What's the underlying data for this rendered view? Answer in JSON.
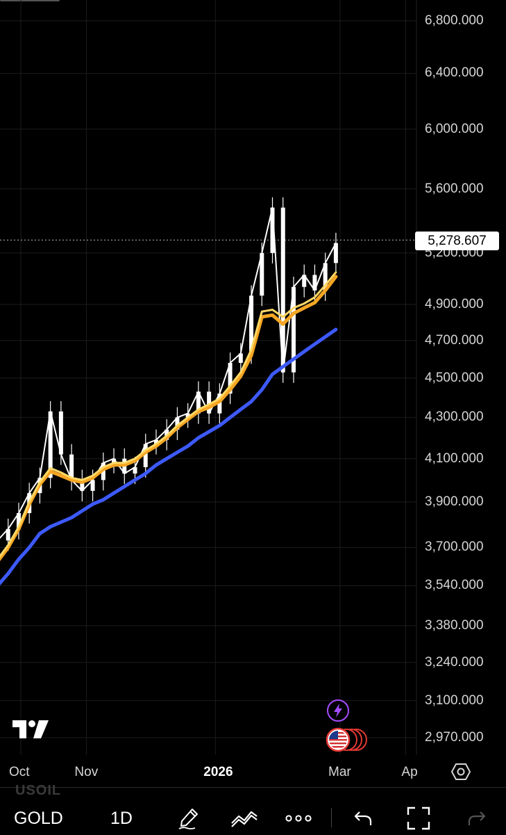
{
  "chart_data": {
    "type": "line",
    "title": "",
    "xlabel": "",
    "ylabel": "",
    "log_scale": true,
    "ylim": [
      2900,
      6950
    ],
    "grid": true,
    "y_ticks": [
      "6,800.000",
      "6,400.000",
      "6,000.000",
      "5,600.000",
      "5,200.000",
      "4,900.000",
      "4,700.000",
      "4,500.000",
      "4,300.000",
      "4,100.000",
      "3,900.000",
      "3,700.000",
      "3,540.000",
      "3,380.000",
      "3,240.000",
      "3,100.000",
      "2,970.000"
    ],
    "x_ticks": [
      "Oct",
      "Nov",
      "2026",
      "Mar",
      "Ap"
    ],
    "last_price": "5,278.607",
    "x_dates": [
      "2025-09-10",
      "2025-09-15",
      "2025-09-20",
      "2025-09-25",
      "2025-09-30",
      "2025-10-05",
      "2025-10-10",
      "2025-10-15",
      "2025-10-20",
      "2025-10-25",
      "2025-10-30",
      "2025-11-04",
      "2025-11-09",
      "2025-11-14",
      "2025-11-19",
      "2025-11-24",
      "2025-11-29",
      "2025-12-04",
      "2025-12-09",
      "2025-12-14",
      "2025-12-19",
      "2025-12-24",
      "2025-12-29",
      "2026-01-03",
      "2026-01-08",
      "2026-01-13",
      "2026-01-18",
      "2026-01-23",
      "2026-01-28",
      "2026-02-02",
      "2026-02-07",
      "2026-02-12",
      "2026-02-17",
      "2026-02-22",
      "2026-02-27"
    ],
    "series": [
      {
        "color": "#ffffff",
        "values": [
          3640,
          3700,
          3730,
          3780,
          3850,
          3940,
          4010,
          4330,
          4120,
          4000,
          3950,
          4000,
          4080,
          4100,
          4030,
          4060,
          4170,
          4190,
          4240,
          4300,
          4320,
          4430,
          4320,
          4420,
          4580,
          4630,
          4950,
          5200,
          5480,
          4530,
          5000,
          5070,
          4980,
          5140,
          5260
        ]
      },
      {
        "color": "#f5a623",
        "values": [
          3545,
          3590,
          3640,
          3700,
          3780,
          3890,
          3980,
          4040,
          4020,
          4000,
          3990,
          4010,
          4050,
          4070,
          4070,
          4090,
          4130,
          4160,
          4200,
          4250,
          4290,
          4330,
          4350,
          4380,
          4440,
          4510,
          4620,
          4830,
          4840,
          4790,
          4850,
          4880,
          4910,
          4980,
          5060
        ]
      },
      {
        "color": "#ffd966",
        "values": [
          3555,
          3600,
          3650,
          3710,
          3790,
          3900,
          3990,
          4055,
          4035,
          4010,
          4000,
          4020,
          4060,
          4080,
          4080,
          4100,
          4140,
          4170,
          4210,
          4260,
          4300,
          4340,
          4365,
          4395,
          4460,
          4530,
          4650,
          4860,
          4870,
          4830,
          4880,
          4905,
          4940,
          5010,
          5085
        ]
      },
      {
        "color": "#3d5afe",
        "values": [
          3430,
          3480,
          3540,
          3590,
          3650,
          3700,
          3760,
          3790,
          3810,
          3830,
          3860,
          3890,
          3910,
          3940,
          3970,
          4000,
          4030,
          4070,
          4100,
          4130,
          4160,
          4200,
          4230,
          4260,
          4300,
          4340,
          4380,
          4440,
          4520,
          4560,
          4600,
          4640,
          4680,
          4720,
          4760
        ]
      }
    ]
  },
  "toolbar": {
    "symbol": "GOLD",
    "symbol_ghost": "USOIL",
    "interval": "1D",
    "more": "∙∙∙"
  },
  "icons": {
    "logo": "tradingview-logo",
    "drawing": "pen-icon",
    "indicators": "indicators-icon",
    "more": "more-icon",
    "undo": "undo-icon",
    "fullscreen": "fullscreen-icon",
    "redo": "redo-icon",
    "settings": "settings-icon",
    "bolt": "lightning-icon",
    "flag": "us-flag-icon"
  },
  "colors": {
    "background": "#000000",
    "candles": "#ffffff",
    "ema_orange": "#f5a623",
    "ema_yellow": "#ffd966",
    "ema_blue": "#3d5afe",
    "event_purple": "#a64dff",
    "event_red": "#e53935"
  }
}
